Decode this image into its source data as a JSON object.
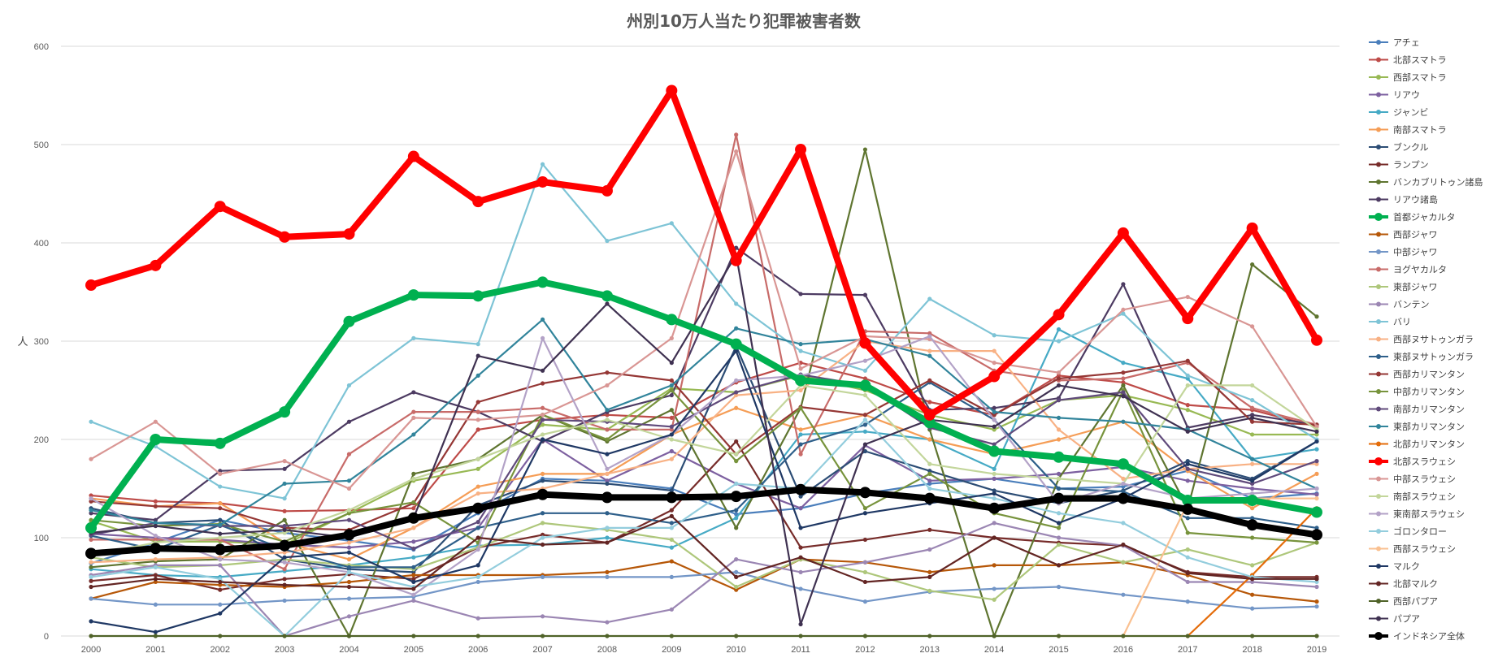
{
  "chart_data": {
    "type": "line",
    "title": "州別10万人当たり犯罪被害者数",
    "xlabel": "",
    "ylabel": "人",
    "x": [
      2000,
      2001,
      2002,
      2003,
      2004,
      2005,
      2006,
      2007,
      2008,
      2009,
      2010,
      2011,
      2012,
      2013,
      2014,
      2015,
      2016,
      2017,
      2018,
      2019
    ],
    "ylim": [
      0,
      600
    ],
    "yticks": [
      0,
      100,
      200,
      300,
      400,
      500,
      600
    ],
    "grid": true,
    "legend_position": "right",
    "series": [
      {
        "name": "アチェ",
        "color": "#4a7ebb",
        "bold": false,
        "values": [
          74,
          95,
          118,
          105,
          97,
          88,
          125,
          160,
          158,
          150,
          124,
          130,
          145,
          155,
          160,
          150,
          152,
          168,
          140,
          145
        ]
      },
      {
        "name": "北部スマトラ",
        "color": "#be4b48",
        "bold": false,
        "values": [
          143,
          137,
          135,
          127,
          128,
          130,
          210,
          220,
          225,
          222,
          258,
          278,
          262,
          238,
          225,
          265,
          258,
          235,
          230,
          213
        ]
      },
      {
        "name": "西部スマトラ",
        "color": "#98b954",
        "bold": false,
        "values": [
          117,
          96,
          96,
          93,
          125,
          158,
          170,
          215,
          210,
          252,
          248,
          265,
          250,
          225,
          210,
          240,
          245,
          230,
          205,
          205
        ]
      },
      {
        "name": "リアウ",
        "color": "#7d60a0",
        "bold": false,
        "values": [
          104,
          100,
          98,
          93,
          90,
          96,
          110,
          200,
          158,
          188,
          155,
          130,
          194,
          158,
          160,
          165,
          172,
          158,
          150,
          144
        ]
      },
      {
        "name": "ジャンビ",
        "color": "#46aac5",
        "bold": false,
        "values": [
          68,
          62,
          60,
          66,
          72,
          80,
          92,
          93,
          100,
          90,
          120,
          205,
          208,
          200,
          170,
          312,
          278,
          262,
          180,
          190
        ]
      },
      {
        "name": "南部スマトラ",
        "color": "#f59d56",
        "bold": false,
        "values": [
          140,
          132,
          135,
          95,
          78,
          110,
          152,
          165,
          165,
          205,
          232,
          210,
          225,
          200,
          185,
          200,
          218,
          168,
          130,
          165
        ]
      },
      {
        "name": "ブンクル",
        "color": "#2c4d75",
        "bold": false,
        "values": [
          130,
          115,
          118,
          78,
          68,
          65,
          133,
          158,
          155,
          148,
          295,
          142,
          188,
          168,
          148,
          135,
          148,
          178,
          160,
          198
        ]
      },
      {
        "name": "ランプン",
        "color": "#772c2a",
        "bold": false,
        "values": [
          56,
          62,
          47,
          58,
          63,
          58,
          90,
          103,
          95,
          128,
          198,
          90,
          98,
          108,
          100,
          95,
          92,
          65,
          60,
          60
        ]
      },
      {
        "name": "バンカブリトゥン諸島",
        "color": "#5f7530",
        "bold": false,
        "values": [
          70,
          76,
          78,
          118,
          0,
          165,
          180,
          225,
          198,
          230,
          110,
          232,
          495,
          210,
          0,
          160,
          255,
          130,
          378,
          325
        ]
      },
      {
        "name": "リアウ諸島",
        "color": "#4d3b62",
        "bold": false,
        "values": [
          125,
          118,
          168,
          170,
          218,
          248,
          228,
          198,
          228,
          245,
          395,
          348,
          347,
          230,
          232,
          242,
          358,
          212,
          225,
          215
        ]
      },
      {
        "name": "首都ジャカルタ",
        "color": "#00b050",
        "bold": true,
        "values": [
          110,
          200,
          196,
          228,
          320,
          347,
          346,
          360,
          346,
          322,
          297,
          260,
          255,
          217,
          188,
          182,
          175,
          138,
          138,
          126
        ]
      },
      {
        "name": "西部ジャワ",
        "color": "#b65708",
        "bold": false,
        "values": [
          38,
          55,
          52,
          50,
          55,
          62,
          62,
          62,
          65,
          76,
          47,
          78,
          75,
          65,
          72,
          72,
          75,
          62,
          42,
          35
        ]
      },
      {
        "name": "中部ジャワ",
        "color": "#7396c7",
        "bold": false,
        "values": [
          38,
          32,
          32,
          36,
          38,
          40,
          55,
          60,
          60,
          60,
          65,
          48,
          35,
          45,
          48,
          50,
          42,
          35,
          28,
          30
        ]
      },
      {
        "name": "ヨグヤカルタ",
        "color": "#c86b69",
        "bold": false,
        "values": [
          98,
          98,
          98,
          68,
          185,
          228,
          228,
          232,
          210,
          210,
          510,
          185,
          310,
          308,
          270,
          260,
          262,
          278,
          232,
          215
        ]
      },
      {
        "name": "東部ジャワ",
        "color": "#aec77b",
        "bold": false,
        "values": [
          80,
          70,
          72,
          78,
          72,
          68,
          90,
          115,
          108,
          98,
          50,
          78,
          65,
          46,
          37,
          93,
          75,
          88,
          72,
          95
        ]
      },
      {
        "name": "バンテン",
        "color": "#9b86b3",
        "bold": false,
        "values": [
          62,
          72,
          72,
          0,
          20,
          36,
          18,
          20,
          14,
          27,
          78,
          65,
          75,
          88,
          115,
          100,
          92,
          55,
          55,
          50
        ]
      },
      {
        "name": "バリ",
        "color": "#7ec4d6",
        "bold": false,
        "values": [
          218,
          193,
          152,
          140,
          255,
          303,
          297,
          480,
          402,
          420,
          338,
          290,
          270,
          343,
          306,
          300,
          328,
          265,
          240,
          200
        ]
      },
      {
        "name": "西部ヌサトゥンガラ",
        "color": "#f8b184",
        "bold": false,
        "values": [
          75,
          78,
          80,
          85,
          95,
          110,
          145,
          150,
          165,
          180,
          245,
          250,
          300,
          290,
          290,
          210,
          160,
          170,
          175,
          175
        ]
      },
      {
        "name": "東部ヌサトゥンガラ",
        "color": "#2e5f8a",
        "bold": false,
        "values": [
          102,
          88,
          113,
          88,
          70,
          70,
          110,
          125,
          125,
          115,
          128,
          195,
          215,
          258,
          220,
          150,
          147,
          120,
          120,
          110
        ]
      },
      {
        "name": "西部カリマンタン",
        "color": "#953735",
        "bold": false,
        "values": [
          137,
          132,
          130,
          110,
          108,
          135,
          238,
          257,
          268,
          260,
          185,
          233,
          225,
          260,
          225,
          262,
          268,
          280,
          218,
          215
        ]
      },
      {
        "name": "中部カリマンタン",
        "color": "#77933c",
        "bold": false,
        "values": [
          118,
          112,
          114,
          96,
          125,
          136,
          95,
          225,
          200,
          250,
          178,
          232,
          130,
          165,
          125,
          110,
          250,
          105,
          100,
          95
        ]
      },
      {
        "name": "南部カリマンタン",
        "color": "#604a7b",
        "bold": false,
        "values": [
          103,
          115,
          112,
          112,
          118,
          89,
          116,
          220,
          218,
          213,
          248,
          266,
          255,
          212,
          195,
          240,
          248,
          170,
          155,
          178
        ]
      },
      {
        "name": "東部カリマンタン",
        "color": "#31849b",
        "bold": false,
        "values": [
          128,
          115,
          113,
          155,
          158,
          205,
          265,
          322,
          230,
          255,
          313,
          297,
          302,
          285,
          228,
          222,
          218,
          210,
          180,
          150
        ]
      },
      {
        "name": "北部カリマンタン",
        "color": "#e46c0a",
        "bold": false,
        "values": [
          null,
          null,
          null,
          null,
          null,
          null,
          null,
          null,
          null,
          null,
          null,
          null,
          null,
          null,
          null,
          null,
          null,
          0,
          62,
          130
        ]
      },
      {
        "name": "北部スラウェシ",
        "color": "#ff0000",
        "bold": true,
        "values": [
          357,
          377,
          437,
          406,
          409,
          488,
          442,
          462,
          453,
          555,
          382,
          495,
          298,
          225,
          264,
          327,
          410,
          323,
          415,
          301
        ]
      },
      {
        "name": "中部スラウェシ",
        "color": "#d99694",
        "bold": false,
        "values": [
          180,
          218,
          165,
          178,
          150,
          222,
          220,
          225,
          255,
          303,
          493,
          272,
          305,
          302,
          278,
          268,
          332,
          345,
          315,
          213
        ]
      },
      {
        "name": "南部スラウェシ",
        "color": "#c3d69b",
        "bold": false,
        "values": [
          82,
          95,
          100,
          105,
          128,
          160,
          180,
          205,
          220,
          200,
          185,
          255,
          245,
          175,
          165,
          160,
          155,
          255,
          255,
          210
        ]
      },
      {
        "name": "東南部スラウェシ",
        "color": "#b3a2c7",
        "bold": false,
        "values": [
          140,
          102,
          78,
          75,
          65,
          42,
          88,
          303,
          170,
          205,
          260,
          265,
          280,
          305,
          220,
          135,
          155,
          140,
          145,
          150
        ]
      },
      {
        "name": "ゴロンタロー",
        "color": "#93cddd",
        "bold": false,
        "values": [
          60,
          70,
          58,
          0,
          65,
          50,
          60,
          100,
          110,
          110,
          155,
          150,
          220,
          150,
          140,
          125,
          115,
          80,
          60,
          55
        ]
      },
      {
        "name": "西部スラウェシ",
        "color": "#fac090",
        "bold": false,
        "values": [
          null,
          null,
          null,
          null,
          null,
          null,
          null,
          null,
          null,
          null,
          null,
          null,
          null,
          null,
          null,
          0,
          0,
          135,
          140,
          140
        ]
      },
      {
        "name": "マルク",
        "color": "#1f3864",
        "bold": false,
        "values": [
          15,
          4,
          23,
          80,
          85,
          55,
          72,
          200,
          185,
          205,
          290,
          110,
          125,
          135,
          145,
          115,
          140,
          175,
          158,
          198
        ]
      },
      {
        "name": "北部マルク",
        "color": "#632523",
        "bold": false,
        "values": [
          50,
          58,
          55,
          52,
          50,
          48,
          100,
          93,
          95,
          122,
          60,
          80,
          55,
          60,
          100,
          72,
          93,
          64,
          58,
          58
        ]
      },
      {
        "name": "西部パプア",
        "color": "#4f6228",
        "bold": false,
        "values": [
          0,
          0,
          0,
          0,
          0,
          0,
          0,
          0,
          0,
          0,
          0,
          0,
          0,
          0,
          0,
          0,
          0,
          0,
          0,
          0
        ]
      },
      {
        "name": "パプア",
        "color": "#3f3151",
        "bold": false,
        "values": [
          105,
          112,
          104,
          108,
          100,
          120,
          285,
          270,
          338,
          278,
          388,
          12,
          195,
          220,
          213,
          255,
          244,
          208,
          222,
          208
        ]
      },
      {
        "name": "インドネシア全体",
        "color": "#000000",
        "bold": true,
        "values": [
          84,
          89,
          88,
          92,
          103,
          120,
          130,
          144,
          141,
          141,
          142,
          149,
          146,
          140,
          130,
          140,
          140,
          129,
          113,
          103
        ]
      }
    ]
  }
}
